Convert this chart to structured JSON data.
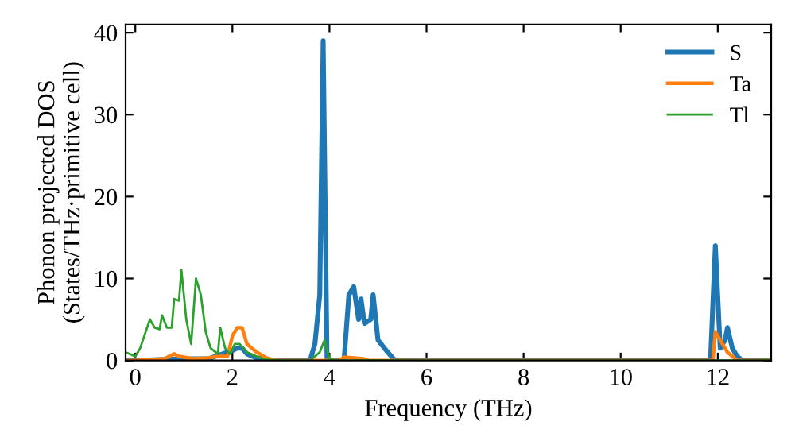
{
  "chart_data": {
    "type": "line",
    "xlabel": "Frequency (THz)",
    "ylabel": "Phonon projected DOS\n(States/THz·primitive cell)",
    "xlim": [
      -0.2,
      13.1
    ],
    "ylim": [
      0,
      41
    ],
    "xticks": [
      0,
      2,
      4,
      6,
      8,
      10,
      12
    ],
    "yticks": [
      0,
      10,
      20,
      30,
      40
    ],
    "grid": false,
    "legend": "top right",
    "marker": "none",
    "line_style": "solid",
    "series": [
      {
        "name": "S",
        "color": "#1f77b4",
        "x": [
          -0.2,
          0,
          1,
          1.5,
          2.0,
          2.1,
          2.2,
          2.3,
          2.5,
          2.8,
          3.6,
          3.7,
          3.8,
          3.87,
          3.95,
          4.3,
          4.4,
          4.5,
          4.6,
          4.65,
          4.72,
          4.85,
          4.9,
          5.0,
          5.2,
          5.35,
          11.85,
          11.95,
          12.05,
          12.15,
          12.2,
          12.3,
          12.4,
          12.5,
          13.1
        ],
        "values": [
          0,
          0,
          0.2,
          0.2,
          1.2,
          1.5,
          1.5,
          0.8,
          0.3,
          0,
          0,
          2,
          8,
          39,
          0,
          0,
          8,
          9,
          5,
          7.5,
          4.5,
          5,
          8,
          2.5,
          1,
          0,
          0,
          14,
          1.5,
          2.5,
          4,
          1.5,
          0.5,
          0,
          0
        ]
      },
      {
        "name": "Ta",
        "color": "#ff7f0e",
        "x": [
          -0.2,
          0,
          0.6,
          0.8,
          0.9,
          1.2,
          1.5,
          1.7,
          1.9,
          2.0,
          2.1,
          2.2,
          2.3,
          2.5,
          2.7,
          2.9,
          4.2,
          4.3,
          4.5,
          4.7,
          4.8,
          11.9,
          11.95,
          12.05,
          12.15,
          12.2,
          12.3,
          12.4,
          13.1
        ],
        "values": [
          0,
          0,
          0.2,
          0.8,
          0.5,
          0.2,
          0.3,
          0.5,
          0.5,
          3,
          4,
          4,
          2,
          1,
          0.3,
          0,
          0,
          0.4,
          0.3,
          0.2,
          0,
          0,
          3.5,
          2.5,
          1.5,
          1,
          0.5,
          0,
          0
        ]
      },
      {
        "name": "Tl",
        "color": "#2ca02c",
        "x": [
          -0.2,
          0,
          0.1,
          0.3,
          0.4,
          0.5,
          0.55,
          0.65,
          0.75,
          0.8,
          0.9,
          0.95,
          1.05,
          1.15,
          1.25,
          1.35,
          1.45,
          1.55,
          1.7,
          1.75,
          1.85,
          1.95,
          2.05,
          2.15,
          2.3,
          2.5,
          2.7,
          3.0,
          3.6,
          3.8,
          3.9,
          4.0,
          4.1,
          13.1
        ],
        "values": [
          1,
          0.5,
          1.5,
          5,
          4,
          3.8,
          5.5,
          4,
          4,
          7.5,
          7.3,
          11,
          5,
          2,
          10,
          8,
          3.5,
          1.5,
          0.8,
          4,
          1.5,
          0.8,
          2,
          2,
          1,
          0.5,
          0.1,
          0,
          0,
          1,
          2.5,
          0.2,
          0,
          0
        ]
      }
    ]
  }
}
